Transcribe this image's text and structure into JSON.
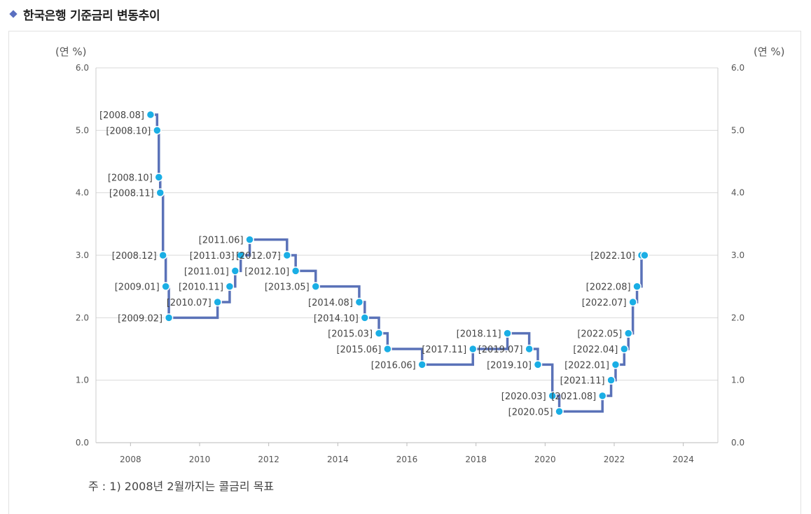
{
  "header": {
    "title": "한국은행 기준금리 변동추이"
  },
  "note": "주 : 1) 2008년 2월까지는 콜금리 목표",
  "chart_data": {
    "type": "line",
    "step": true,
    "title": "한국은행 기준금리 변동추이",
    "y_unit_left": "(연 %)",
    "y_unit_right": "(연 %)",
    "ylim": [
      0,
      6
    ],
    "xlim": [
      2007,
      2025
    ],
    "yticks": [
      {
        "value": 0,
        "label": "0.0"
      },
      {
        "value": 1,
        "label": "1.0"
      },
      {
        "value": 2,
        "label": "2.0"
      },
      {
        "value": 3,
        "label": "3.0"
      },
      {
        "value": 4,
        "label": "4.0"
      },
      {
        "value": 5,
        "label": "5.0"
      },
      {
        "value": 6,
        "label": "6.0"
      }
    ],
    "xticks": [
      {
        "value": 2008,
        "label": "2008"
      },
      {
        "value": 2010,
        "label": "2010"
      },
      {
        "value": 2012,
        "label": "2012"
      },
      {
        "value": 2014,
        "label": "2014"
      },
      {
        "value": 2016,
        "label": "2016"
      },
      {
        "value": 2018,
        "label": "2018"
      },
      {
        "value": 2020,
        "label": "2020"
      },
      {
        "value": 2022,
        "label": "2022"
      },
      {
        "value": 2024,
        "label": "2024"
      }
    ],
    "grid": true,
    "line_color": "#5a72b8",
    "point_color": "#1aaee5",
    "points": [
      {
        "label": "[2008.08]",
        "x": 2008.58,
        "y": 5.25
      },
      {
        "label": "[2008.10]",
        "x": 2008.77,
        "y": 5.0
      },
      {
        "label": "[2008.10]",
        "x": 2008.82,
        "y": 4.25
      },
      {
        "label": "[2008.11]",
        "x": 2008.86,
        "y": 4.0
      },
      {
        "label": "[2008.12]",
        "x": 2008.94,
        "y": 3.0
      },
      {
        "label": "[2009.01]",
        "x": 2009.02,
        "y": 2.5
      },
      {
        "label": "[2009.02]",
        "x": 2009.11,
        "y": 2.0
      },
      {
        "label": "[2010.07]",
        "x": 2010.52,
        "y": 2.25
      },
      {
        "label": "[2010.11]",
        "x": 2010.87,
        "y": 2.5
      },
      {
        "label": "[2011.01]",
        "x": 2011.03,
        "y": 2.75
      },
      {
        "label": "[2011.03]",
        "x": 2011.19,
        "y": 3.0
      },
      {
        "label": "[2011.06]",
        "x": 2011.45,
        "y": 3.25
      },
      {
        "label": "[2012.07]",
        "x": 2012.53,
        "y": 3.0
      },
      {
        "label": "[2012.10]",
        "x": 2012.78,
        "y": 2.75
      },
      {
        "label": "[2013.05]",
        "x": 2013.36,
        "y": 2.5
      },
      {
        "label": "[2014.08]",
        "x": 2014.62,
        "y": 2.25
      },
      {
        "label": "[2014.10]",
        "x": 2014.78,
        "y": 2.0
      },
      {
        "label": "[2015.03]",
        "x": 2015.19,
        "y": 1.75
      },
      {
        "label": "[2015.06]",
        "x": 2015.44,
        "y": 1.5
      },
      {
        "label": "[2016.06]",
        "x": 2016.44,
        "y": 1.25
      },
      {
        "label": "[2017.11]",
        "x": 2017.91,
        "y": 1.5
      },
      {
        "label": "[2018.11]",
        "x": 2018.91,
        "y": 1.75
      },
      {
        "label": "[2019.07]",
        "x": 2019.54,
        "y": 1.5
      },
      {
        "label": "[2019.10]",
        "x": 2019.79,
        "y": 1.25
      },
      {
        "label": "[2020.03]",
        "x": 2020.21,
        "y": 0.75
      },
      {
        "label": "[2020.05]",
        "x": 2020.41,
        "y": 0.5
      },
      {
        "label": "[2021.08]",
        "x": 2021.66,
        "y": 0.75
      },
      {
        "label": "[2021.11]",
        "x": 2021.91,
        "y": 1.0
      },
      {
        "label": "[2022.01]",
        "x": 2022.04,
        "y": 1.25
      },
      {
        "label": "[2022.04]",
        "x": 2022.29,
        "y": 1.5
      },
      {
        "label": "[2022.05]",
        "x": 2022.41,
        "y": 1.75
      },
      {
        "label": "[2022.07]",
        "x": 2022.54,
        "y": 2.25
      },
      {
        "label": "[2022.08]",
        "x": 2022.66,
        "y": 2.5
      },
      {
        "label": "[2022.10]",
        "x": 2022.79,
        "y": 3.0
      },
      {
        "label": "",
        "x": 2022.88,
        "y": 3.0
      }
    ]
  }
}
